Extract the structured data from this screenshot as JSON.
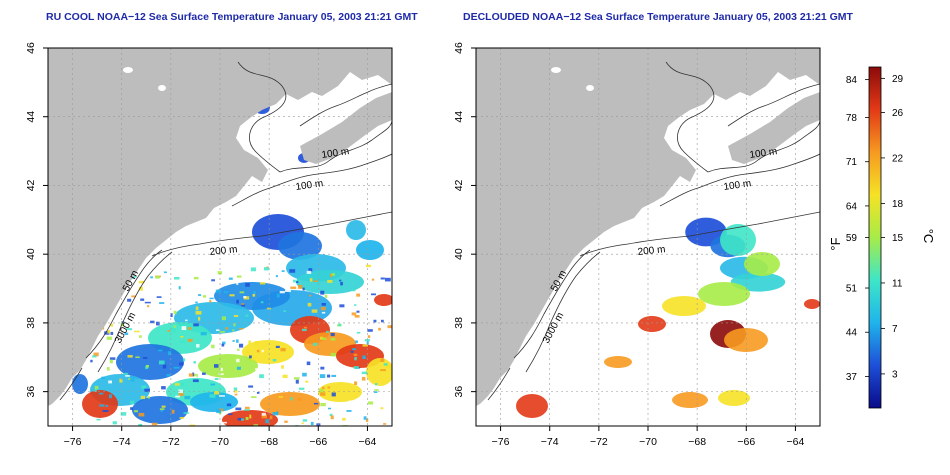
{
  "panels": [
    {
      "title": "RU COOL NOAA−12 Sea Surface Temperature January 05, 2003 21:21 GMT",
      "clouded": true
    },
    {
      "title": "DECLOUDED NOAA−12 Sea Surface Temperature January 05, 2003 21:21 GMT",
      "clouded": false
    }
  ],
  "axes": {
    "lon_ticks": [
      "−76",
      "−74",
      "−72",
      "−70",
      "−68",
      "−66",
      "−64"
    ],
    "lat_ticks": [
      "36",
      "38",
      "40",
      "42",
      "44",
      "46"
    ],
    "lon_range": [
      -77,
      -63
    ],
    "lat_range": [
      35,
      46
    ]
  },
  "isobaths": [
    {
      "label": "100 m"
    },
    {
      "label": "100 m"
    },
    {
      "label": "200 m"
    },
    {
      "label": "50 m"
    },
    {
      "label": "3000 m"
    }
  ],
  "colorbar": {
    "fahrenheit_ticks": [
      "84",
      "78",
      "71",
      "64",
      "59",
      "51",
      "44",
      "37"
    ],
    "celsius_ticks": [
      "29",
      "26",
      "22",
      "18",
      "15",
      "11",
      "7",
      "3"
    ],
    "fahrenheit_unit": "°F",
    "celsius_unit": "°C",
    "range_c": [
      0,
      30
    ],
    "colors": [
      "#0a0a8a",
      "#1d4fd8",
      "#1fb4ec",
      "#3ee6c8",
      "#a7ec47",
      "#f6e226",
      "#f79a20",
      "#e23a17",
      "#8c0a0a"
    ]
  },
  "colors": {
    "land": "#bdbdbd",
    "grid": "#9a9a9a",
    "contour": "#333333"
  }
}
